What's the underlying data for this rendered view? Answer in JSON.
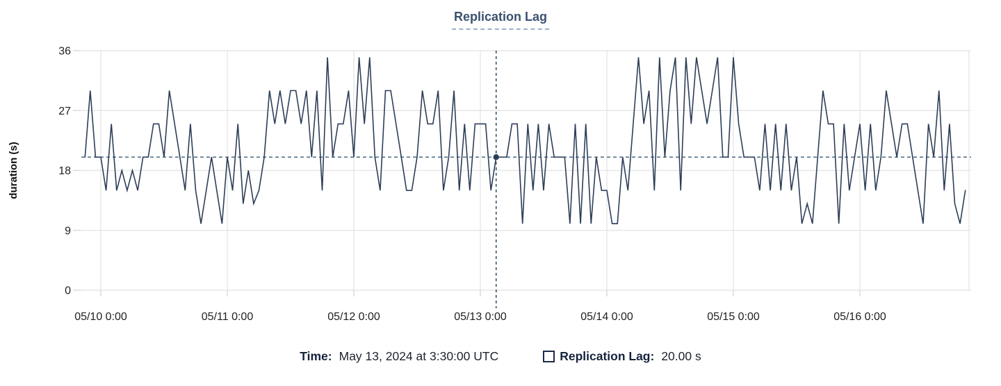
{
  "title": "Replication Lag",
  "tooltip": {
    "time_label": "Time:",
    "time_value": "May 13, 2024 at 3:30:00 UTC",
    "series_label": "Replication Lag:",
    "series_value": "20.00 s"
  },
  "colors": {
    "series_line": "#2c3e58",
    "crosshair": "#3e5c76",
    "dot": "#2c3e58",
    "grid": "#e7e7e7",
    "tick_mark": "#d9d9d9",
    "axis_text": "#1f1f1f",
    "axis_title": "#111111",
    "chart_title": "#3b5170",
    "title_underline": "#9db0c7",
    "footer_label": "#16233c",
    "footer_value": "#1d2330",
    "legend_swatch_border": "#1b2b49",
    "background": "#ffffff"
  },
  "chart_data": {
    "type": "line",
    "title": "Replication Lag",
    "xlabel": "",
    "ylabel": "duration (s)",
    "ylim": [
      0,
      36
    ],
    "yticks": [
      0,
      9,
      18,
      27,
      36
    ],
    "xtick_labels": [
      "05/10 0:00",
      "05/11 0:00",
      "05/12 0:00",
      "05/13 0:00",
      "05/14 0:00",
      "05/15 0:00",
      "05/16 0:00"
    ],
    "x_start": "05/09 21:30",
    "x_interval": "1h",
    "grid": true,
    "legend_position": "bottom",
    "series": [
      {
        "name": "Replication Lag",
        "unit": "s",
        "values": [
          20,
          30,
          20,
          20,
          15,
          25,
          15,
          18,
          15,
          18,
          15,
          20,
          20,
          25,
          25,
          20,
          30,
          25,
          20,
          15,
          25,
          15,
          10,
          15,
          20,
          15,
          10,
          20,
          15,
          25,
          13,
          18,
          13,
          15,
          20,
          30,
          25,
          30,
          25,
          30,
          30,
          25,
          30,
          20,
          30,
          15,
          35,
          20,
          25,
          25,
          30,
          20,
          35,
          25,
          35,
          20,
          15,
          30,
          30,
          25,
          20,
          15,
          15,
          20,
          30,
          25,
          25,
          30,
          15,
          20,
          30,
          15,
          25,
          15,
          25,
          25,
          25,
          15,
          20,
          20,
          20,
          25,
          25,
          10,
          25,
          15,
          25,
          15,
          25,
          20,
          20,
          20,
          10,
          25,
          10,
          25,
          10,
          20,
          15,
          15,
          10,
          10,
          20,
          15,
          25,
          35,
          25,
          30,
          15,
          35,
          20,
          30,
          35,
          15,
          35,
          25,
          35,
          30,
          25,
          30,
          35,
          20,
          20,
          35,
          25,
          20,
          20,
          20,
          15,
          25,
          15,
          25,
          15,
          25,
          15,
          20,
          10,
          13,
          10,
          20,
          30,
          25,
          25,
          10,
          25,
          15,
          20,
          25,
          15,
          25,
          15,
          20,
          30,
          25,
          20,
          25,
          25,
          20,
          15,
          10,
          25,
          20,
          30,
          15,
          25,
          13,
          10,
          15
        ]
      }
    ],
    "crosshair": {
      "index": 78,
      "time": "May 13, 2024 at 3:30:00 UTC",
      "value": 20,
      "value_label": "20.00 s"
    }
  }
}
